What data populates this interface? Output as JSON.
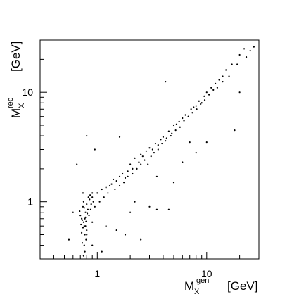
{
  "chart_data": {
    "type": "scatter",
    "x_label": {
      "base": "M",
      "sub": "X",
      "sup": "gen",
      "unit": "[GeV]"
    },
    "y_label": {
      "base": "M",
      "sub": "X",
      "sup": "rec",
      "unit": "[GeV]"
    },
    "xscale": "log",
    "yscale": "log",
    "xlim": [
      0.3,
      30
    ],
    "ylim": [
      0.3,
      30
    ],
    "xticks": [
      1,
      10
    ],
    "yticks": [
      1,
      10
    ],
    "minor_xticks": [
      0.3,
      0.4,
      0.5,
      0.6,
      0.7,
      0.8,
      0.9,
      2,
      3,
      4,
      5,
      6,
      7,
      8,
      9,
      20,
      30
    ],
    "minor_yticks": [
      0.3,
      0.4,
      0.5,
      0.6,
      0.7,
      0.8,
      0.9,
      2,
      3,
      4,
      5,
      6,
      7,
      8,
      9,
      20,
      30
    ],
    "color": "#000000",
    "x": [
      0.72,
      0.75,
      0.78,
      0.8,
      0.74,
      0.76,
      0.7,
      0.82,
      0.77,
      0.73,
      0.79,
      0.75,
      0.71,
      0.78,
      0.76,
      0.8,
      0.74,
      0.69,
      0.83,
      0.77,
      0.75,
      0.72,
      0.79,
      0.81,
      0.76,
      0.73,
      0.78,
      0.74,
      0.8,
      0.77,
      0.9,
      1.0,
      1.1,
      1.2,
      1.3,
      1.4,
      1.5,
      1.6,
      1.7,
      1.8,
      1.9,
      2.0,
      2.1,
      2.2,
      2.4,
      2.5,
      2.6,
      2.8,
      3.0,
      3.2,
      3.4,
      3.6,
      3.8,
      4.0,
      4.2,
      4.5,
      4.8,
      5.0,
      5.3,
      5.6,
      6.0,
      6.4,
      6.8,
      7.2,
      7.6,
      8.0,
      8.5,
      9.0,
      9.5,
      10,
      11,
      12,
      13,
      14,
      15,
      17,
      20,
      22,
      25,
      27,
      0.95,
      1.05,
      1.15,
      1.25,
      1.35,
      1.45,
      1.6,
      1.75,
      1.9,
      2.1,
      2.3,
      2.5,
      2.7,
      2.9,
      3.1,
      3.3,
      3.6,
      3.9,
      4.3,
      4.7,
      5.2,
      5.7,
      6.2,
      6.8,
      7.4,
      8.1,
      8.8,
      9.6,
      10.5,
      11.5,
      12.5,
      14,
      16,
      19,
      23,
      0.8,
      0.95,
      1.6,
      4.2,
      1.2,
      1.5,
      1.8,
      2.0,
      2.5,
      3.0,
      3.5,
      5.0,
      6.0,
      8,
      10,
      18,
      20,
      0.55,
      0.6,
      0.65,
      2.2,
      4.5,
      3.5,
      7,
      0.9,
      1.1,
      0.85,
      0.88,
      0.9,
      0.92,
      0.87,
      0.86,
      0.84,
      0.9
    ],
    "values": [
      0.7,
      0.65,
      0.8,
      0.55,
      0.9,
      0.6,
      0.75,
      0.85,
      0.5,
      0.68,
      0.45,
      1.0,
      0.62,
      0.72,
      0.4,
      0.95,
      0.58,
      0.82,
      1.1,
      0.35,
      0.32,
      0.52,
      0.66,
      0.78,
      0.88,
      0.42,
      0.6,
      1.2,
      0.5,
      0.7,
      1.1,
      1.2,
      1.3,
      1.35,
      1.4,
      1.6,
      1.55,
      1.7,
      1.8,
      1.65,
      1.9,
      2.2,
      2.0,
      2.5,
      2.3,
      2.7,
      2.6,
      2.9,
      3.1,
      3.0,
      3.4,
      3.3,
      3.7,
      3.9,
      3.6,
      4.4,
      4.2,
      5.0,
      5.1,
      5.4,
      5.8,
      6.2,
      6.0,
      7.0,
      7.3,
      7.5,
      8.3,
      8.0,
      9.2,
      10,
      11,
      12,
      13,
      14,
      16,
      18,
      22,
      25,
      24,
      26,
      0.9,
      1.0,
      1.1,
      1.2,
      1.45,
      1.3,
      1.4,
      1.5,
      1.7,
      1.8,
      2.0,
      2.2,
      2.4,
      2.2,
      2.6,
      2.8,
      3.0,
      3.4,
      3.8,
      4.0,
      4.5,
      4.8,
      5.5,
      6.0,
      6.5,
      7.0,
      7.8,
      8.5,
      9.5,
      10.5,
      11,
      12.5,
      14,
      18,
      21,
      4.0,
      3.0,
      3.9,
      12.5,
      0.6,
      0.55,
      0.5,
      0.8,
      0.45,
      0.9,
      0.85,
      1.5,
      2.3,
      2.8,
      3.5,
      4.5,
      10,
      0.45,
      0.8,
      2.2,
      1.0,
      0.85,
      1.7,
      3.5,
      0.4,
      0.35,
      1.05,
      0.95,
      1.2,
      1.0,
      0.85,
      1.15,
      0.75,
      0.65
    ]
  }
}
